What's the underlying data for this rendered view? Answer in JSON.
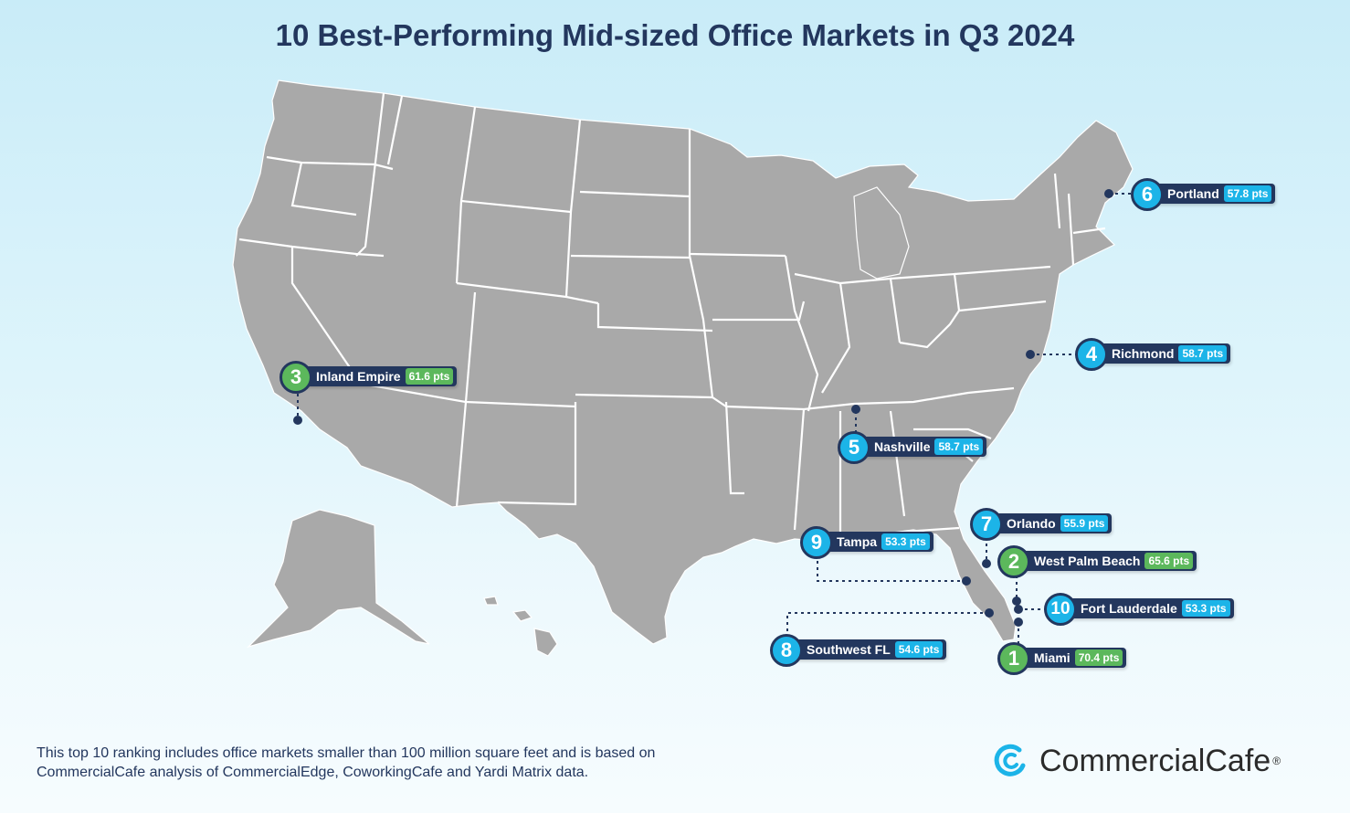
{
  "title": "10 Best-Performing Mid-sized Office Markets in Q3 2024",
  "markets": [
    {
      "rank": "1",
      "city": "Miami",
      "score": "70.4 pts",
      "color": "green"
    },
    {
      "rank": "2",
      "city": "West Palm Beach",
      "score": "65.6 pts",
      "color": "green"
    },
    {
      "rank": "3",
      "city": "Inland Empire",
      "score": "61.6 pts",
      "color": "green"
    },
    {
      "rank": "4",
      "city": "Richmond",
      "score": "58.7 pts",
      "color": "blue"
    },
    {
      "rank": "5",
      "city": "Nashville",
      "score": "58.7 pts",
      "color": "blue"
    },
    {
      "rank": "6",
      "city": "Portland",
      "score": "57.8 pts",
      "color": "blue"
    },
    {
      "rank": "7",
      "city": "Orlando",
      "score": "55.9 pts",
      "color": "blue"
    },
    {
      "rank": "8",
      "city": "Southwest FL",
      "score": "54.6 pts",
      "color": "blue"
    },
    {
      "rank": "9",
      "city": "Tampa",
      "score": "53.3 pts",
      "color": "blue"
    },
    {
      "rank": "10",
      "city": "Fort Lauderdale",
      "score": "53.3 pts",
      "color": "blue"
    }
  ],
  "colors": {
    "top3": "#5cb85c",
    "others": "#1cb4e8",
    "navy": "#23375e",
    "land": "#a9a9a9"
  },
  "footnote": "This top 10 ranking includes office markets smaller than 100 million square feet and is based on CommercialCafe analysis of CommercialEdge, CoworkingCafe and Yardi Matrix data.",
  "brand": {
    "name": "CommercialCafe",
    "mark": "®"
  }
}
